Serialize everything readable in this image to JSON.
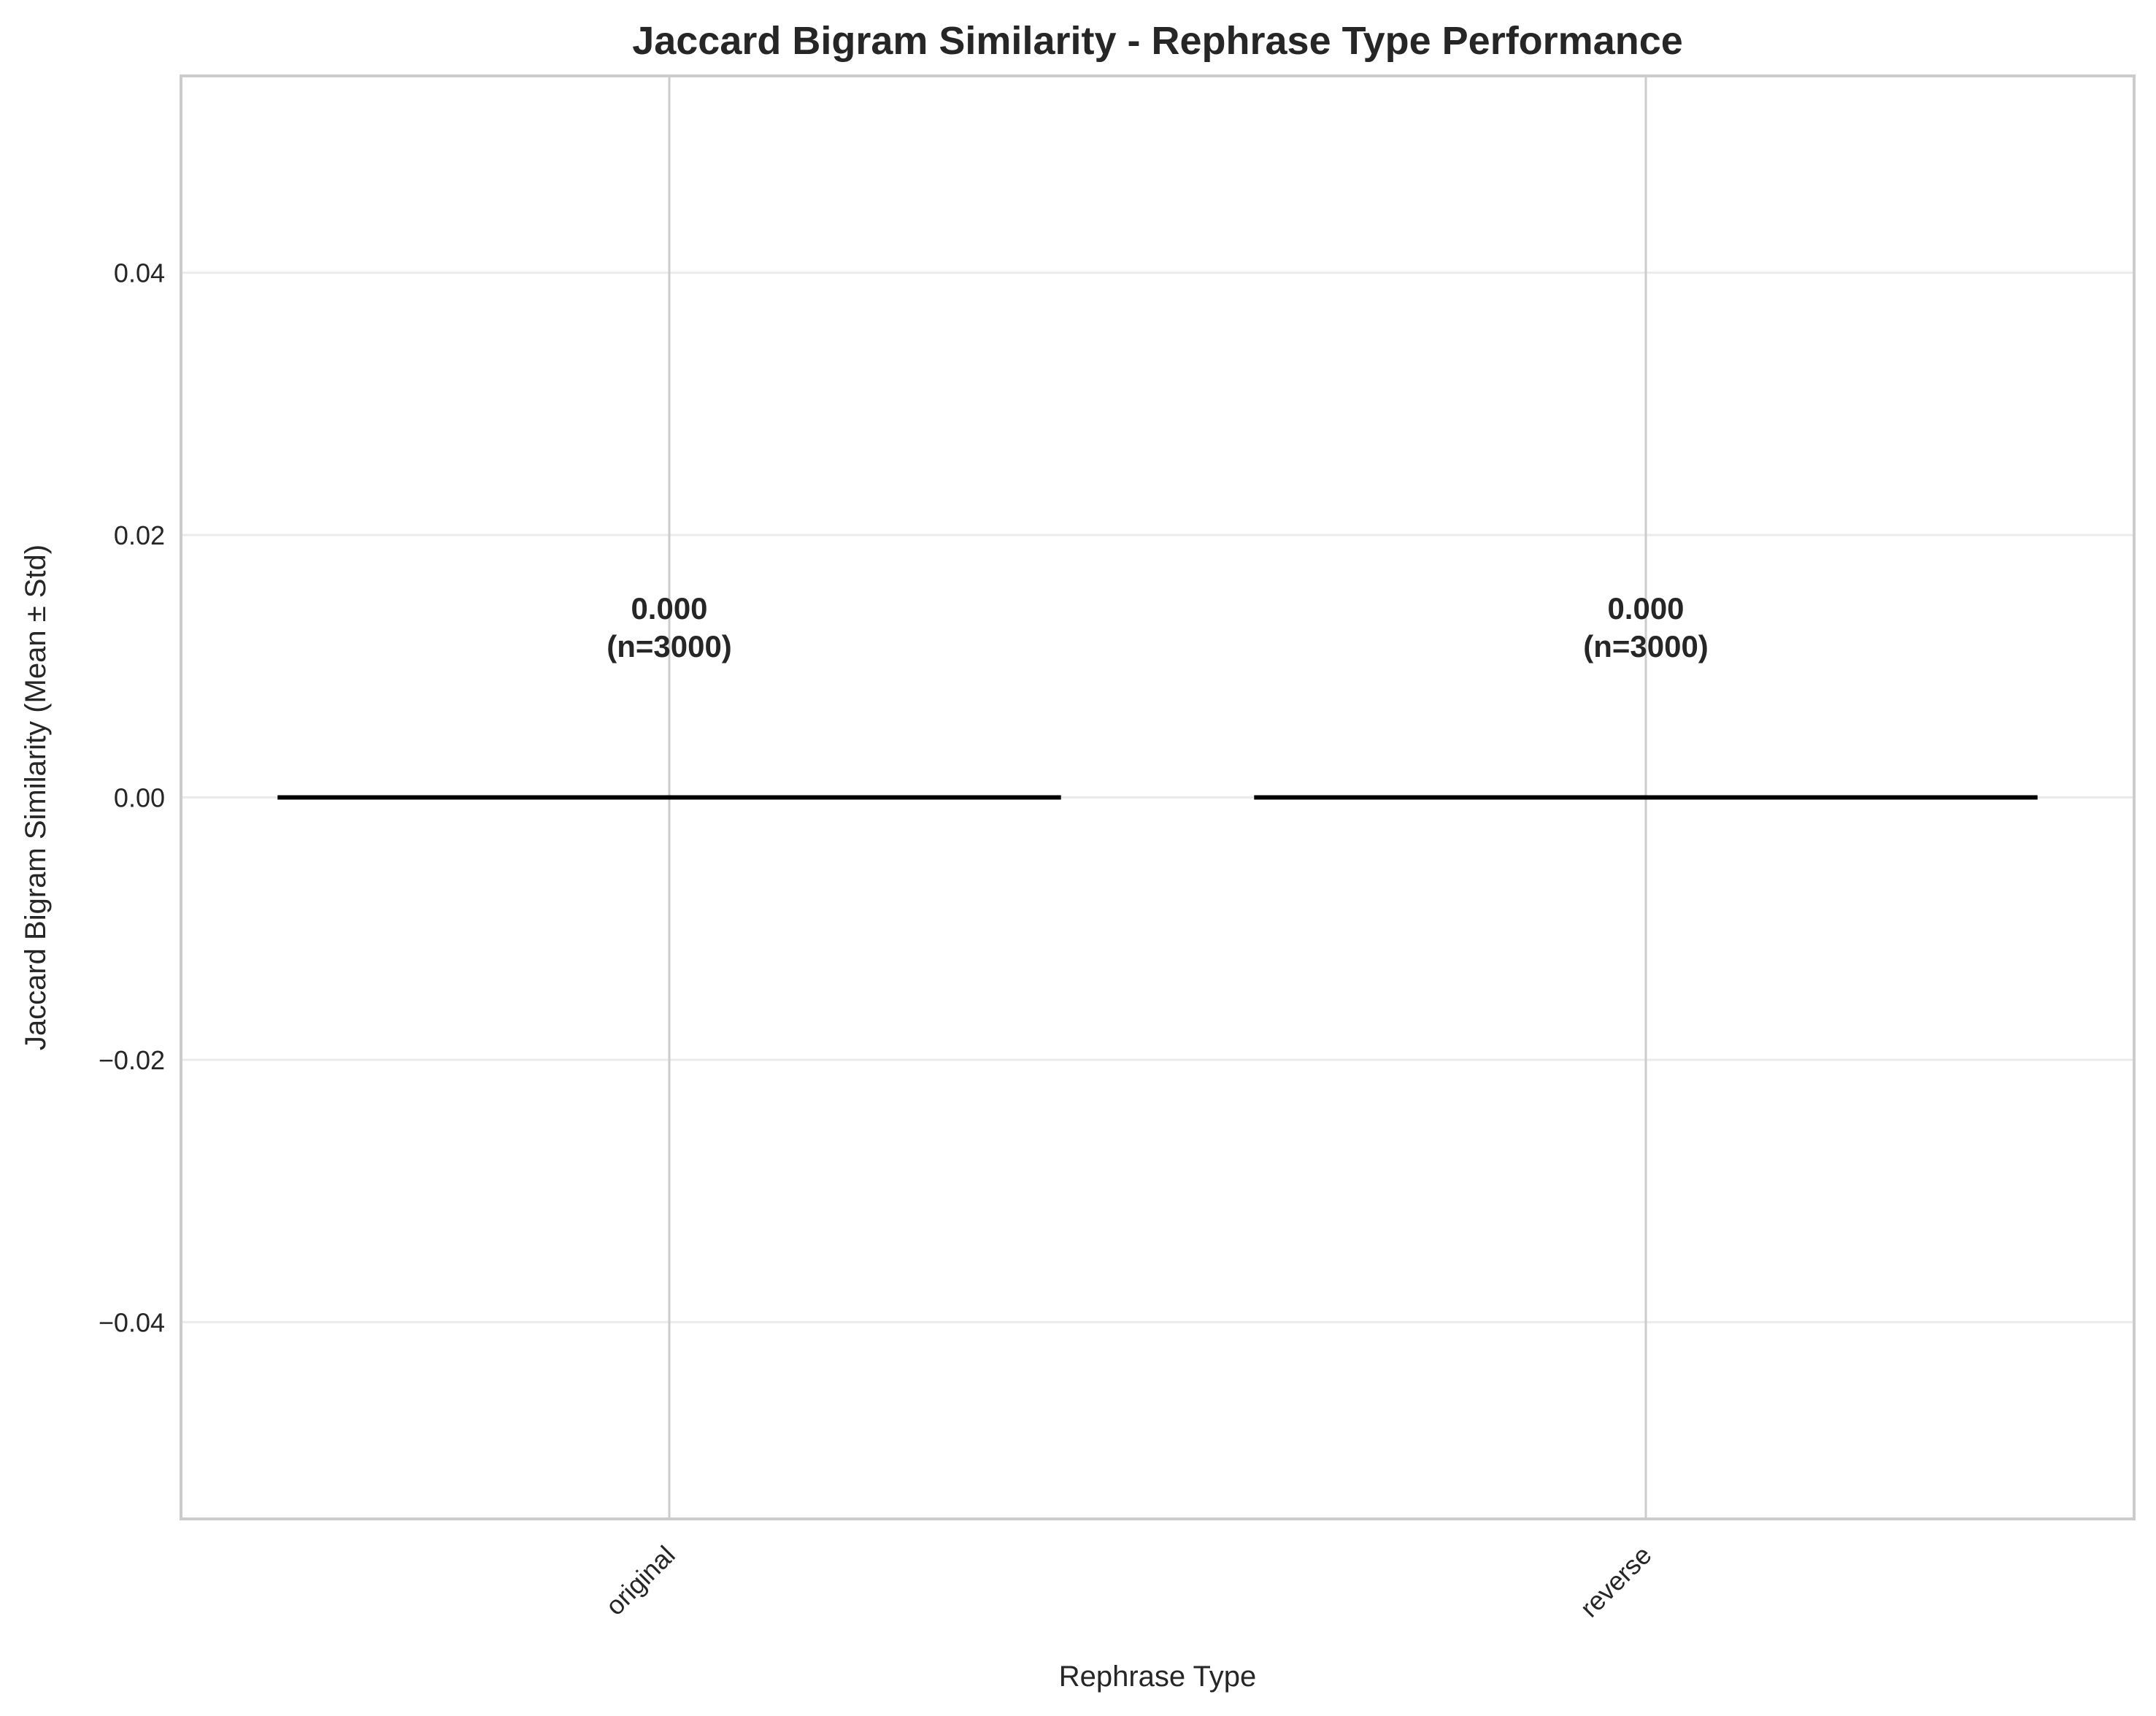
{
  "chart_data": {
    "type": "bar",
    "title": "Jaccard Bigram Similarity - Rephrase Type Performance",
    "xlabel": "Rephrase Type",
    "ylabel": "Jaccard Bigram Similarity (Mean ± Std)",
    "categories": [
      "original",
      "reverse"
    ],
    "values": [
      0.0,
      0.0
    ],
    "std": [
      0.0,
      0.0
    ],
    "labels": [
      {
        "value": "0.000",
        "n": "(n=3000)"
      },
      {
        "value": "0.000",
        "n": "(n=3000)"
      }
    ],
    "ylim": [
      -0.055,
      0.055
    ],
    "yticks": [
      -0.04,
      -0.02,
      0.0,
      0.02,
      0.04
    ],
    "ytick_labels": [
      "−0.04",
      "−0.02",
      "0.00",
      "0.02",
      "0.04"
    ],
    "grid": true,
    "colors": {
      "grid": "#ebebeb",
      "vgrid": "#cccccc",
      "frame": "#cccccc",
      "bar_edge": "#000000",
      "text": "#262626"
    }
  }
}
